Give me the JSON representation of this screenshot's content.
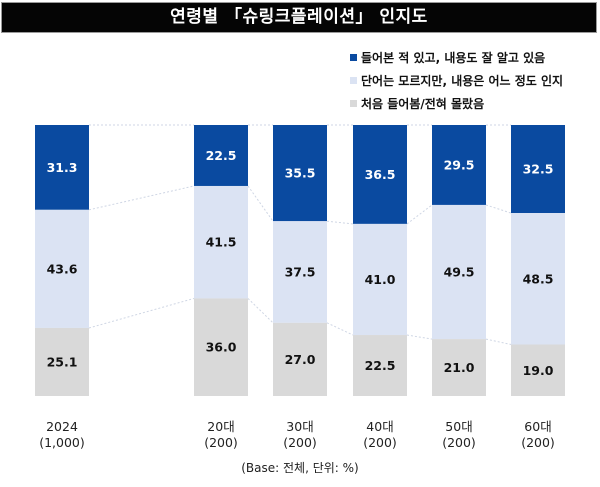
{
  "title": "연령별 「슈링크플레이션」 인지도",
  "legend": [
    {
      "label": "들어본 적 있고, 내용도 잘 알고 있음",
      "color": "#0a4aa0"
    },
    {
      "label": "단어는 모르지만, 내용은 어느 정도 인지",
      "color": "#dbe3f3"
    },
    {
      "label": "처음 들어봄/전혀 몰랐음",
      "color": "#d9d9d9"
    }
  ],
  "footnote": "(Base: 전체, 단위: %)",
  "chart_data": {
    "type": "bar",
    "stacked": true,
    "orientation": "vertical",
    "title": "연령별 「슈링크플레이션」 인지도",
    "categories": [
      "2024",
      "20대",
      "30대",
      "40대",
      "50대",
      "60대"
    ],
    "category_bases": [
      "(1,000)",
      "(200)",
      "(200)",
      "(200)",
      "(200)",
      "(200)"
    ],
    "series": [
      {
        "name": "들어본 적 있고, 내용도 잘 알고 있음",
        "values": [
          31.3,
          22.5,
          35.5,
          36.5,
          29.5,
          32.5
        ],
        "color": "#0a4aa0",
        "label_color": "#ffffff"
      },
      {
        "name": "단어는 모르지만, 내용은 어느 정도 인지",
        "values": [
          43.6,
          41.5,
          37.5,
          41.0,
          49.5,
          48.5
        ],
        "color": "#dbe3f3",
        "label_color": "#111111"
      },
      {
        "name": "처음 들어봄/전혀 몰랐음",
        "values": [
          25.1,
          36.0,
          27.0,
          22.5,
          21.0,
          19.0
        ],
        "color": "#d9d9d9",
        "label_color": "#111111"
      }
    ],
    "value_labels": [
      [
        "31.3",
        "22.5",
        "35.5",
        "36.5",
        "29.5",
        "32.5"
      ],
      [
        "43.6",
        "41.5",
        "37.5",
        "41.0",
        "49.5",
        "48.5"
      ],
      [
        "25.1",
        "36.0",
        "27.0",
        "22.5",
        "21.0",
        "19.0"
      ]
    ],
    "ylim": [
      0,
      100
    ],
    "unit": "%",
    "legend_position": "top-right",
    "grid": false,
    "connector_lines": "dotted"
  }
}
